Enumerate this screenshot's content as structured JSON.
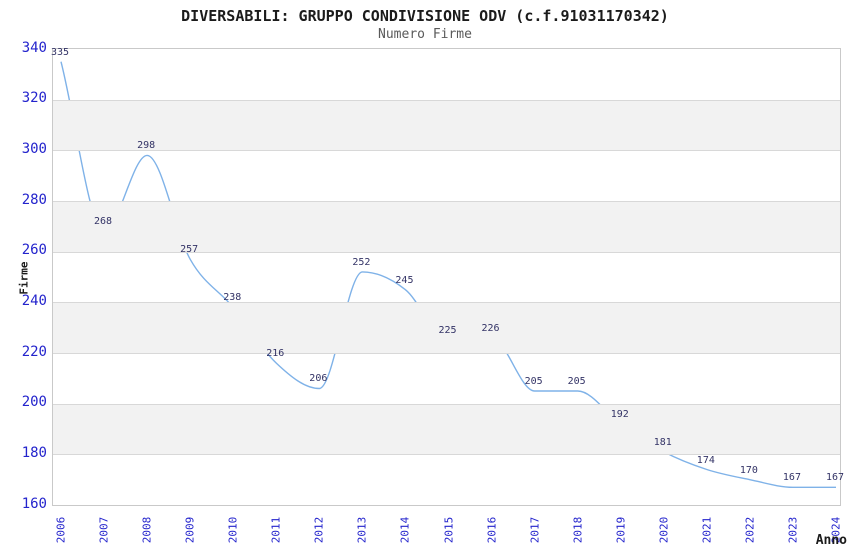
{
  "chart_data": {
    "type": "line",
    "title": "DIVERSABILI: GRUPPO CONDIVISIONE ODV (c.f.91031170342)",
    "subtitle": "Numero Firme",
    "xlabel": "Anno",
    "ylabel": "Firme",
    "categories": [
      "2006",
      "2007",
      "2008",
      "2009",
      "2010",
      "2011",
      "2012",
      "2013",
      "2014",
      "2015",
      "2016",
      "2017",
      "2018",
      "2019",
      "2020",
      "2021",
      "2022",
      "2023",
      "2024"
    ],
    "series": [
      {
        "name": "Numero Firme",
        "values": [
          335,
          268,
          298,
          257,
          238,
          216,
          206,
          252,
          245,
          225,
          226,
          205,
          205,
          192,
          181,
          174,
          170,
          167,
          167
        ]
      }
    ],
    "ylim": [
      160,
      340
    ],
    "ytick_step": 20,
    "yticks": [
      340,
      320,
      300,
      280,
      260,
      240,
      220,
      200,
      180,
      160
    ],
    "show_value_labels": true,
    "legend": "none",
    "grid": "horizontal gridlines with alternating shaded bands",
    "colors": {
      "line": "#7fb2e8",
      "tick_labels": "#2323cc",
      "value_labels": "#333366",
      "band": "#f2f2f2",
      "gridline": "#d8d8d8",
      "plot_border": "#c9c9c9",
      "title": "#1b1b1b",
      "subtitle": "#5a5a5a",
      "background": "#ffffff"
    }
  }
}
